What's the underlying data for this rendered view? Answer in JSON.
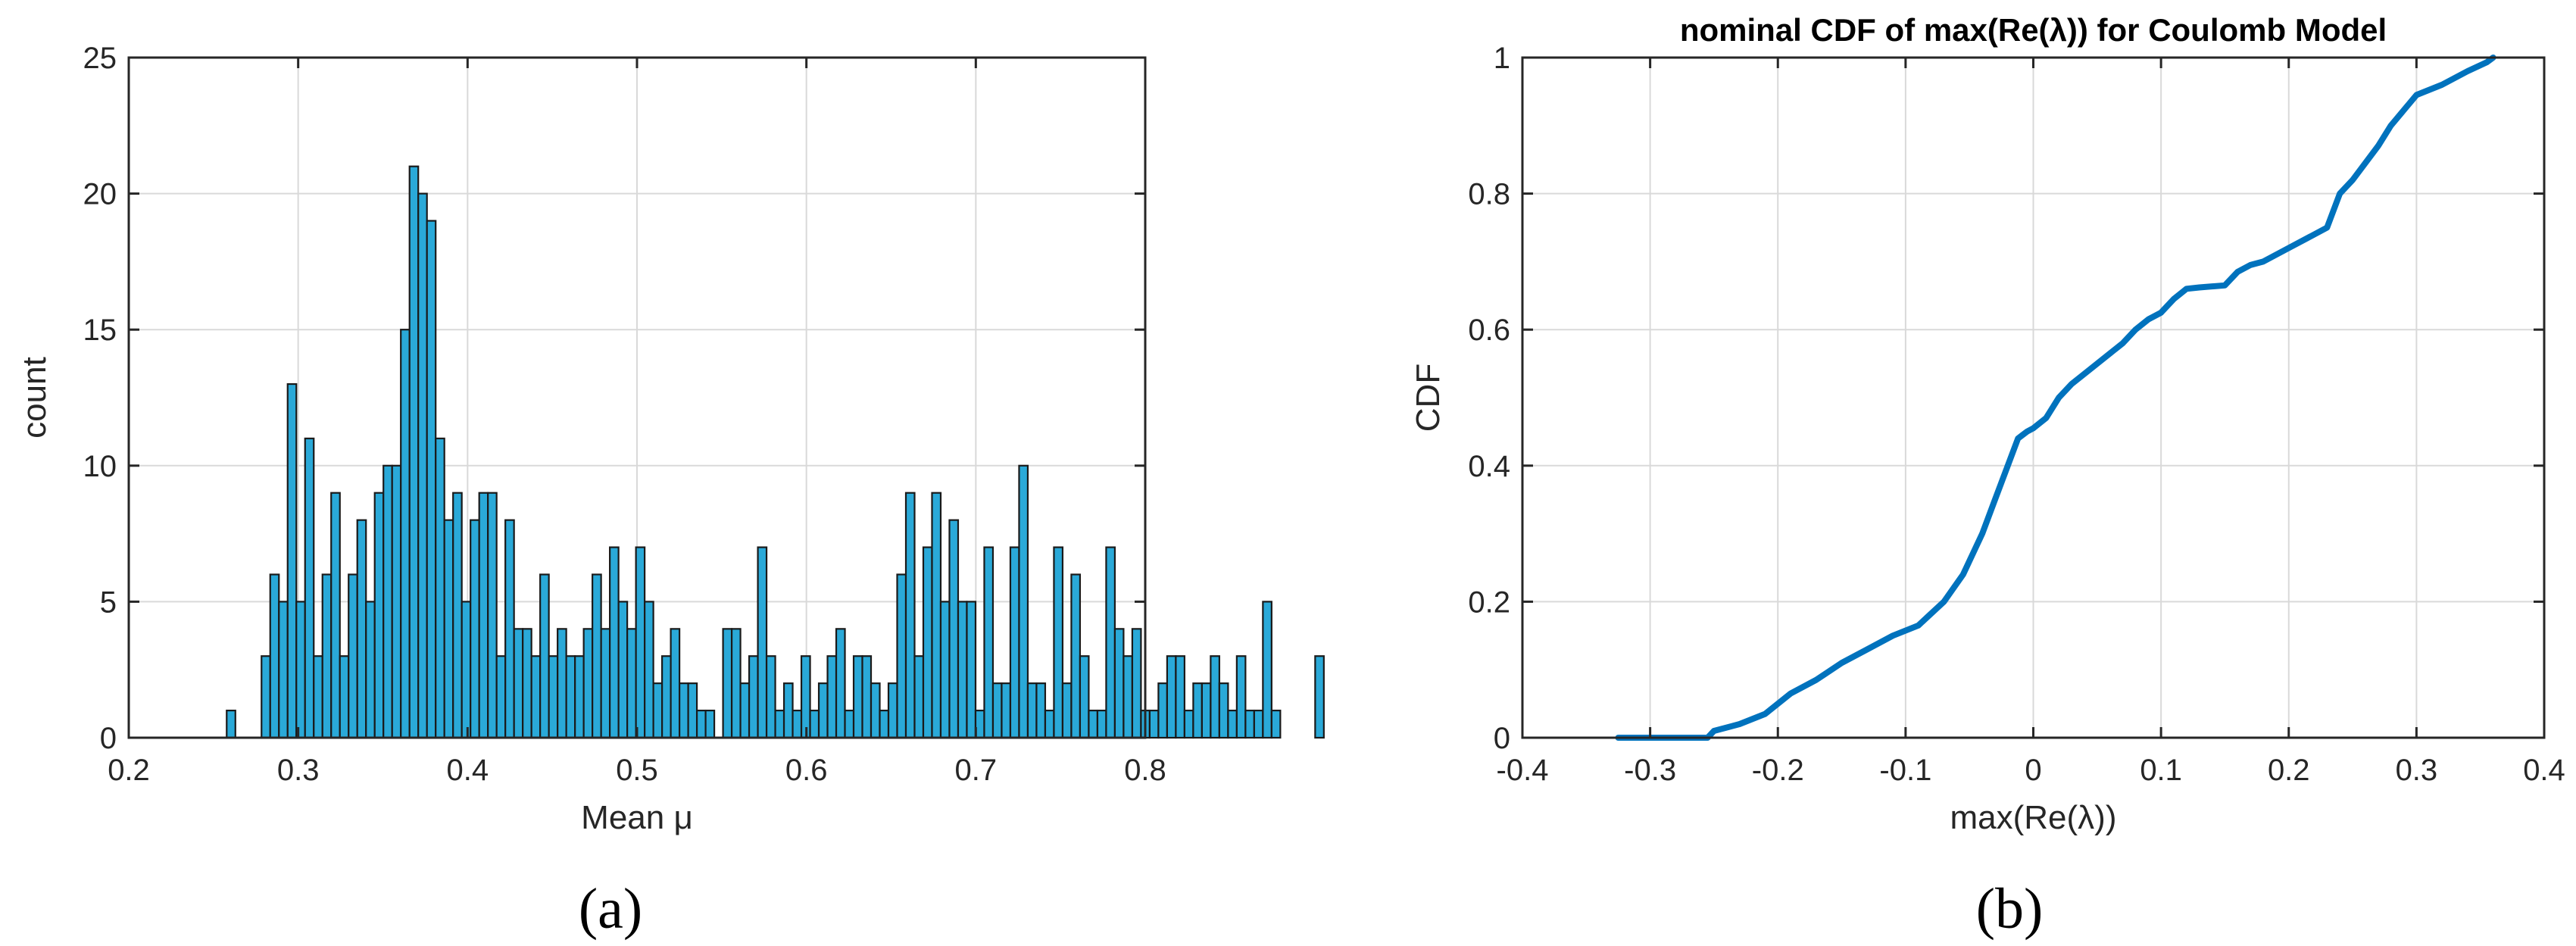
{
  "colors": {
    "histogram_fill": "#2aa9d8",
    "histogram_edge": "#1a1a1a",
    "cdf_line": "#0072bd",
    "grid": "#d9d9d9",
    "axis": "#262626"
  },
  "captions": {
    "a": "(a)",
    "b": "(b)"
  },
  "chart_data": [
    {
      "type": "bar",
      "subtype": "histogram",
      "title": "",
      "xlabel": "Mean μ",
      "ylabel": "count",
      "xlim": [
        0.2,
        0.8
      ],
      "ylim": [
        0,
        25
      ],
      "xticks": [
        0.2,
        0.3,
        0.4,
        0.5,
        0.6,
        0.7,
        0.8
      ],
      "xtick_labels": [
        "0.2",
        "0.3",
        "0.4",
        "0.5",
        "0.6",
        "0.7",
        "0.8"
      ],
      "yticks": [
        0,
        5,
        10,
        15,
        20,
        25
      ],
      "ytick_labels": [
        "0",
        "5",
        "10",
        "15",
        "20",
        "25"
      ],
      "grid": true,
      "bin_width": 0.00514,
      "bin_start": 0.2578,
      "values": [
        1,
        0,
        0,
        0,
        3,
        6,
        5,
        13,
        5,
        11,
        3,
        6,
        9,
        3,
        6,
        8,
        5,
        9,
        10,
        10,
        15,
        21,
        20,
        19,
        11,
        8,
        9,
        5,
        8,
        9,
        9,
        3,
        8,
        4,
        4,
        3,
        6,
        3,
        4,
        3,
        3,
        4,
        6,
        4,
        7,
        5,
        4,
        7,
        5,
        2,
        3,
        4,
        2,
        2,
        1,
        1,
        0,
        4,
        4,
        2,
        3,
        7,
        3,
        1,
        2,
        1,
        3,
        1,
        2,
        3,
        4,
        1,
        3,
        3,
        2,
        1,
        2,
        6,
        9,
        3,
        7,
        9,
        5,
        8,
        5,
        5,
        1,
        7,
        2,
        2,
        7,
        10,
        2,
        2,
        1,
        7,
        2,
        6,
        3,
        1,
        1,
        7,
        4,
        3,
        4,
        1,
        1,
        2,
        3,
        3,
        1,
        2,
        2,
        3,
        2,
        1,
        3,
        1,
        1,
        5,
        1,
        0,
        0,
        0,
        0,
        3
      ],
      "bin_centers_note": ""
    },
    {
      "type": "line",
      "title": "nominal CDF of max(Re(λ)) for Coulomb Model",
      "xlabel": "max(Re(λ))",
      "ylabel": "CDF",
      "xlim": [
        -0.4,
        0.4
      ],
      "ylim": [
        0,
        1
      ],
      "xticks": [
        -0.4,
        -0.3,
        -0.2,
        -0.1,
        0,
        0.1,
        0.2,
        0.3,
        0.4
      ],
      "xtick_labels": [
        "-0.4",
        "-0.3",
        "-0.2",
        "-0.1",
        "0",
        "0.1",
        "0.2",
        "0.3",
        "0.4"
      ],
      "yticks": [
        0,
        0.2,
        0.4,
        0.6,
        0.8,
        1
      ],
      "ytick_labels": [
        "0",
        "0.2",
        "0.4",
        "0.6",
        "0.8",
        "1"
      ],
      "grid": true,
      "series": [
        {
          "x": [
            -0.325,
            -0.255,
            -0.25,
            -0.23,
            -0.21,
            -0.19,
            -0.17,
            -0.15,
            -0.13,
            -0.11,
            -0.09,
            -0.07,
            -0.055,
            -0.04,
            -0.03,
            -0.02,
            -0.012,
            -0.005,
            0,
            0.01,
            0.02,
            0.03,
            0.04,
            0.05,
            0.06,
            0.07,
            0.08,
            0.09,
            0.1,
            0.11,
            0.12,
            0.13,
            0.15,
            0.16,
            0.17,
            0.18,
            0.2,
            0.22,
            0.23,
            0.24,
            0.25,
            0.27,
            0.28,
            0.3,
            0.32,
            0.34,
            0.355,
            0.36
          ],
          "y": [
            0,
            0,
            0.01,
            0.02,
            0.035,
            0.065,
            0.085,
            0.11,
            0.13,
            0.15,
            0.165,
            0.2,
            0.24,
            0.3,
            0.35,
            0.4,
            0.44,
            0.45,
            0.455,
            0.47,
            0.5,
            0.52,
            0.535,
            0.55,
            0.565,
            0.58,
            0.6,
            0.615,
            0.625,
            0.645,
            0.66,
            0.662,
            0.665,
            0.685,
            0.695,
            0.7,
            0.72,
            0.74,
            0.75,
            0.8,
            0.82,
            0.87,
            0.9,
            0.945,
            0.96,
            0.98,
            0.993,
            1.0
          ]
        }
      ]
    }
  ]
}
